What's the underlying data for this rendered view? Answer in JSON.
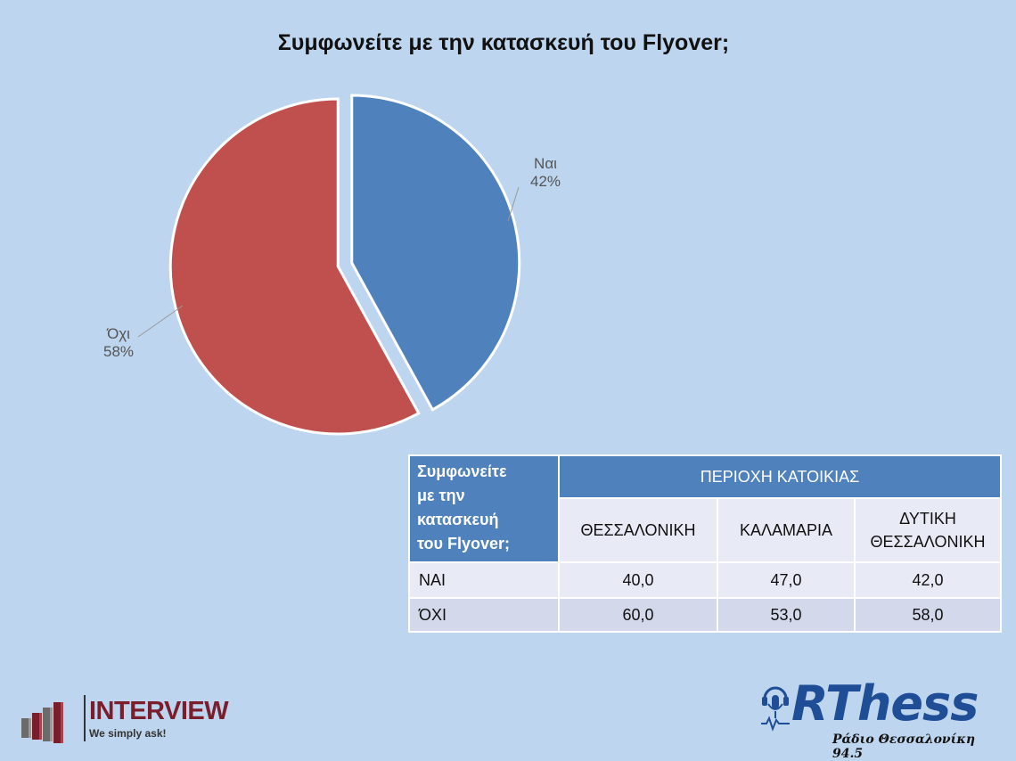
{
  "title": "Συμφωνείτε με την κατασκευή του Flyover;",
  "chart_data": {
    "type": "pie",
    "title": "Συμφωνείτε με την κατασκευή του Flyover;",
    "slices": [
      {
        "label": "Ναι",
        "value": 42,
        "value_label": "42%",
        "color": "#4f81bd"
      },
      {
        "label": "Όχι",
        "value": 58,
        "value_label": "58%",
        "color": "#c0504d"
      }
    ]
  },
  "table": {
    "corner_lines": [
      "Συμφωνείτε",
      "με την",
      "κατασκευή",
      "του Flyover;"
    ],
    "group_header": "ΠΕΡΙΟΧΗ ΚΑΤΟΙΚΙΑΣ",
    "columns": [
      "ΘΕΣΣΑΛΟΝΙΚΗ",
      "ΚΑΛΑΜΑΡΙΑ",
      "ΔΥΤΙΚΗ ΘΕΣΣΑΛΟΝΙΚΗ"
    ],
    "column_lines": [
      [
        "ΘΕΣΣΑΛΟΝΙΚΗ"
      ],
      [
        "ΚΑΛΑΜΑΡΙΑ"
      ],
      [
        "ΔΥΤΙΚΗ",
        "ΘΕΣΣΑΛΟΝΙΚΗ"
      ]
    ],
    "rows": [
      {
        "label": "ΝΑΙ",
        "values": [
          "40,0",
          "47,0",
          "42,0"
        ]
      },
      {
        "label": "ΌΧΙ",
        "values": [
          "60,0",
          "53,0",
          "58,0"
        ]
      }
    ]
  },
  "logos": {
    "left_name": "INTERVIEW",
    "left_tagline": "We simply ask!",
    "right_name": "RThess",
    "right_subtitle": "Ράδιο Θεσσαλονίκη 94.5"
  },
  "colors": {
    "background": "#bdd5ee",
    "yes": "#4f81bd",
    "no": "#c0504d",
    "table_header": "#4f81bd"
  }
}
